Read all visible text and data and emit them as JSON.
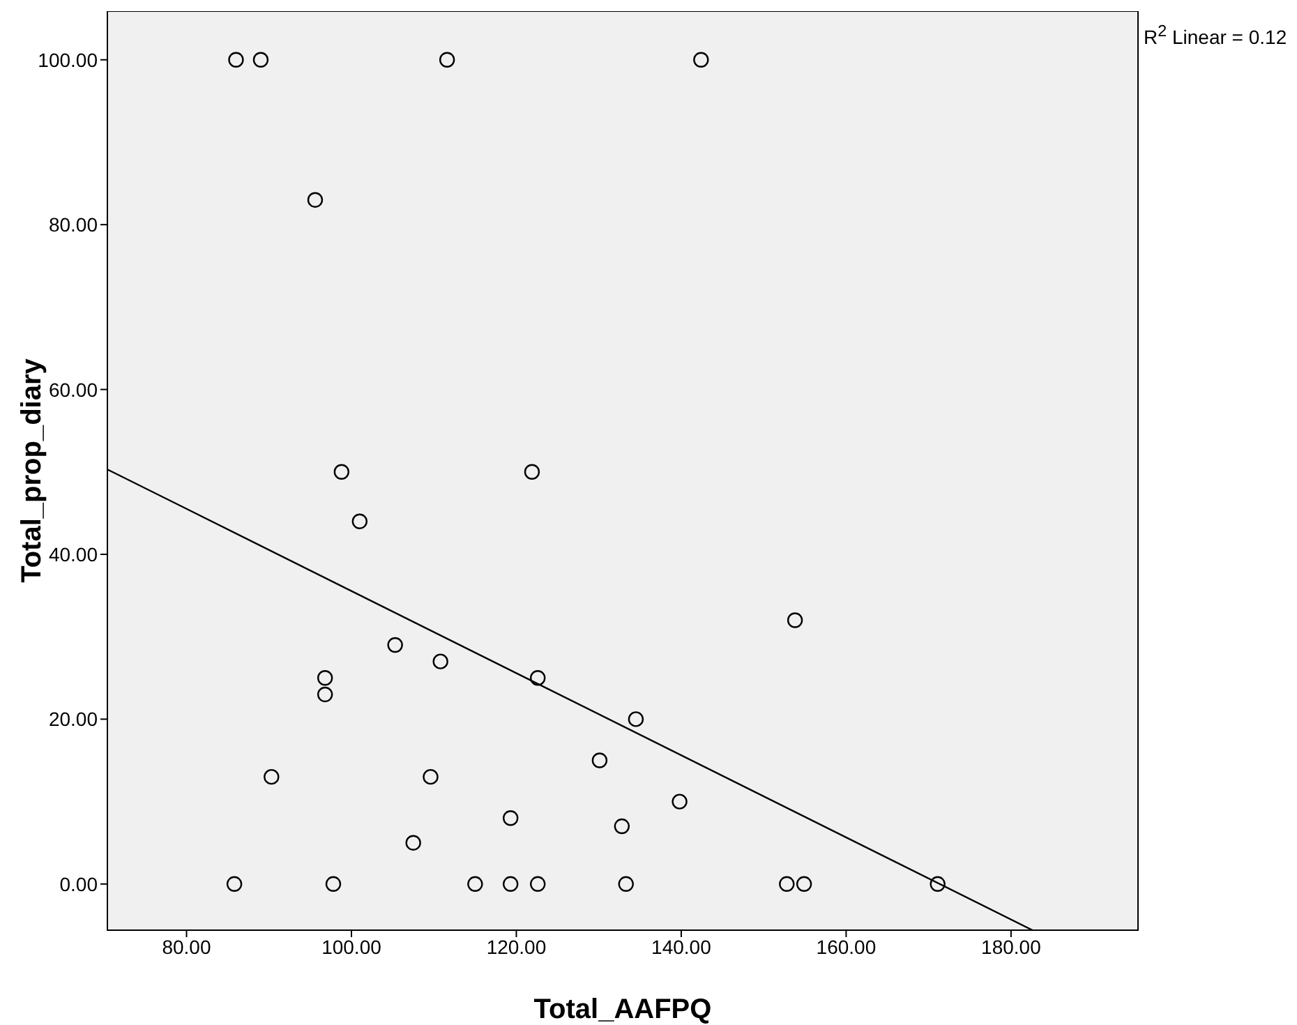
{
  "chart_data": {
    "type": "scatter",
    "xlabel": "Total_AAFPQ",
    "ylabel": "Total_prop_diary",
    "annotations": [
      "R$^{2}$ Linear = 0.12"
    ],
    "xlim": [
      70.4,
      195.4
    ],
    "ylim": [
      -5.6,
      105.9
    ],
    "xticks": [
      {
        "value": 80,
        "label": "80.00"
      },
      {
        "value": 100,
        "label": "100.00"
      },
      {
        "value": 120,
        "label": "120.00"
      },
      {
        "value": 140,
        "label": "140.00"
      },
      {
        "value": 160,
        "label": "160.00"
      },
      {
        "value": 180,
        "label": "180.00"
      }
    ],
    "yticks": [
      {
        "value": 0,
        "label": "0.00"
      },
      {
        "value": 20,
        "label": "20.00"
      },
      {
        "value": 40,
        "label": "40.00"
      },
      {
        "value": 60,
        "label": "60.00"
      },
      {
        "value": 80,
        "label": "80.00"
      },
      {
        "value": 100,
        "label": "100.00"
      }
    ],
    "grid": false,
    "legend": false,
    "series": [
      {
        "color": "#000000",
        "marker": "circle",
        "x": [
          86,
          89,
          111.6,
          142.4,
          95.6,
          98.8,
          121.9,
          101,
          153.8,
          105.3,
          110.8,
          96.8,
          96.8,
          122.6,
          134.5,
          90.3,
          109.6,
          130.1,
          119.3,
          139.8,
          107.5,
          132.8,
          85.8,
          97.8,
          115,
          119.3,
          122.6,
          133.3,
          152.8,
          154.9,
          171.1
        ],
        "values": [
          100,
          100,
          100,
          100,
          83,
          50,
          50,
          44,
          32,
          29,
          27,
          25,
          23,
          25,
          20,
          13,
          13,
          15,
          8,
          10,
          5,
          7,
          0,
          0,
          0,
          0,
          0,
          0,
          0,
          0,
          0
        ]
      },
      {
        "type": "line",
        "color": "#000000",
        "marker": "none",
        "x": [
          70.4,
          182.6
        ],
        "values": [
          50.3,
          -5.6
        ]
      }
    ]
  }
}
